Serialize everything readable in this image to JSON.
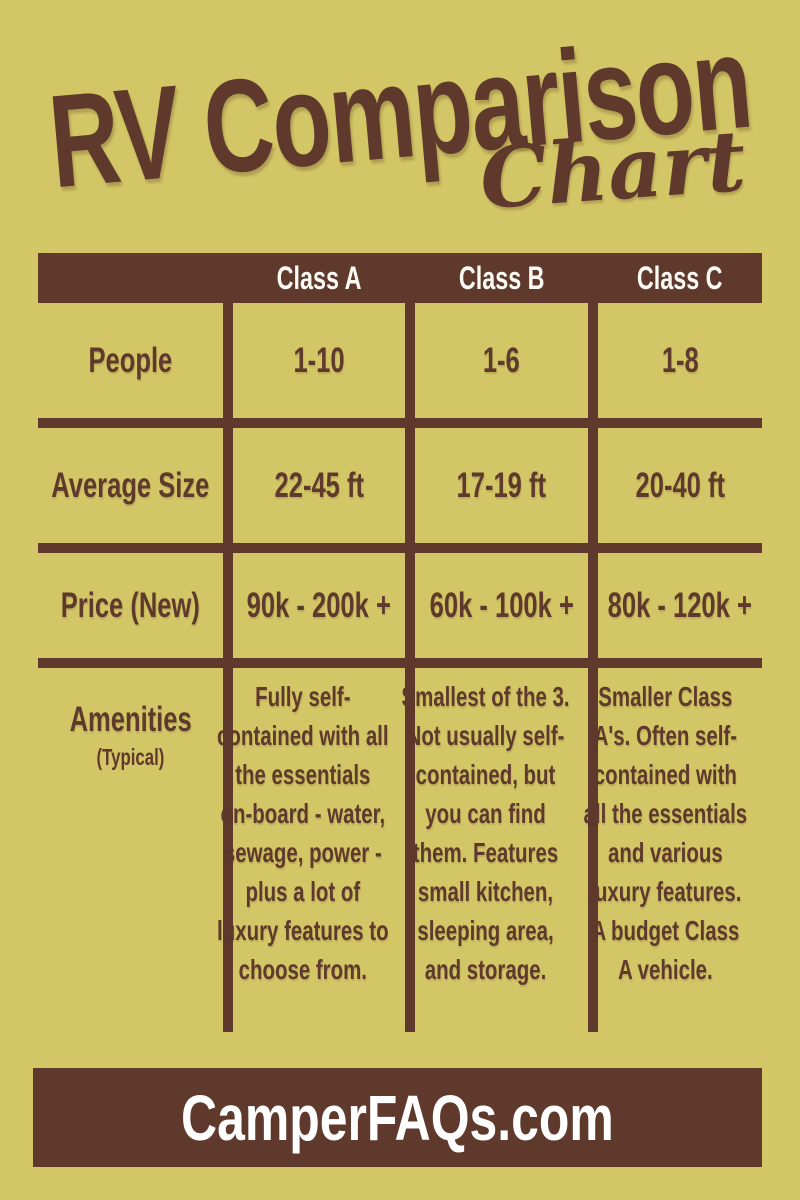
{
  "poster": {
    "title_main": "RV Comparison",
    "title_script": "Chart"
  },
  "table": {
    "column_headers": [
      "Class A",
      "Class B",
      "Class C"
    ],
    "rows": [
      {
        "label": "People",
        "values": [
          "1-10",
          "1-6",
          "1-8"
        ]
      },
      {
        "label": "Average Size",
        "values": [
          "22-45 ft",
          "17-19 ft",
          "20-40 ft"
        ]
      },
      {
        "label": "Price (New)",
        "values": [
          "90k - 200k +",
          "60k - 100k +",
          "80k - 120k +"
        ]
      },
      {
        "label": "Amenities",
        "sublabel": "(Typical)",
        "values": [
          "Fully self-contained with all the essentials on-board - water, sewage, power - plus a lot of luxury features to choose from.",
          "Smallest of the 3. Not usually self-contained, but you can find them. Features small kitchen, sleeping area, and storage.",
          "Smaller Class A's. Often self-contained with all the essentials and various luxury features. A budget Class A vehicle."
        ]
      }
    ]
  },
  "footer": {
    "site": "CamperFAQs.com"
  },
  "colors": {
    "background": "#d3c666",
    "brown": "#5e392c",
    "header_text": "#fcfaf5"
  },
  "chart_data": {
    "type": "table",
    "title": "RV Comparison Chart",
    "columns": [
      "",
      "Class A",
      "Class B",
      "Class C"
    ],
    "rows": [
      [
        "People",
        "1-10",
        "1-6",
        "1-8"
      ],
      [
        "Average Size",
        "22-45 ft",
        "17-19 ft",
        "20-40 ft"
      ],
      [
        "Price (New)",
        "90k - 200k +",
        "60k - 100k +",
        "80k - 120k +"
      ],
      [
        "Amenities (Typical)",
        "Fully self-contained with all the essentials on-board - water, sewage, power - plus a lot of luxury features to choose from.",
        "Smallest of the 3. Not usually self-contained, but you can find them. Features small kitchen, sleeping area, and storage.",
        "Smaller Class A's. Often self-contained with all the essentials and various luxury features. A budget Class A vehicle."
      ]
    ]
  }
}
